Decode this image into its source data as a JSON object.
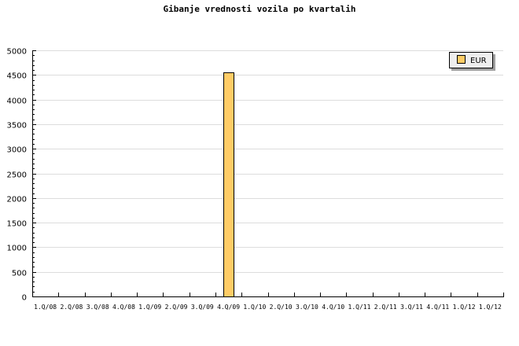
{
  "chart_data": {
    "type": "bar",
    "title": "Gibanje vrednosti vozila po kvartalih",
    "xlabel": "",
    "ylabel": "",
    "categories": [
      "1.Q/08",
      "2.Q/08",
      "3.Q/08",
      "4.Q/08",
      "1.Q/09",
      "2.Q/09",
      "3.Q/09",
      "4.Q/09",
      "1.Q/10",
      "2.Q/10",
      "3.Q/10",
      "4.Q/10",
      "1.Q/11",
      "2.Q/11",
      "3.Q/11",
      "4.Q/11",
      "1.Q/12",
      "1.Q/12"
    ],
    "series": [
      {
        "name": "EUR",
        "color": "#ffcc66",
        "values": [
          0,
          0,
          0,
          0,
          0,
          0,
          0,
          4560,
          0,
          0,
          0,
          0,
          0,
          0,
          0,
          0,
          0,
          0
        ]
      }
    ],
    "ylim": [
      0,
      5000
    ],
    "yticks": [
      0,
      500,
      1000,
      1500,
      2000,
      2500,
      3000,
      3500,
      4000,
      4500,
      5000
    ],
    "grid": true,
    "legend": "top-right"
  }
}
